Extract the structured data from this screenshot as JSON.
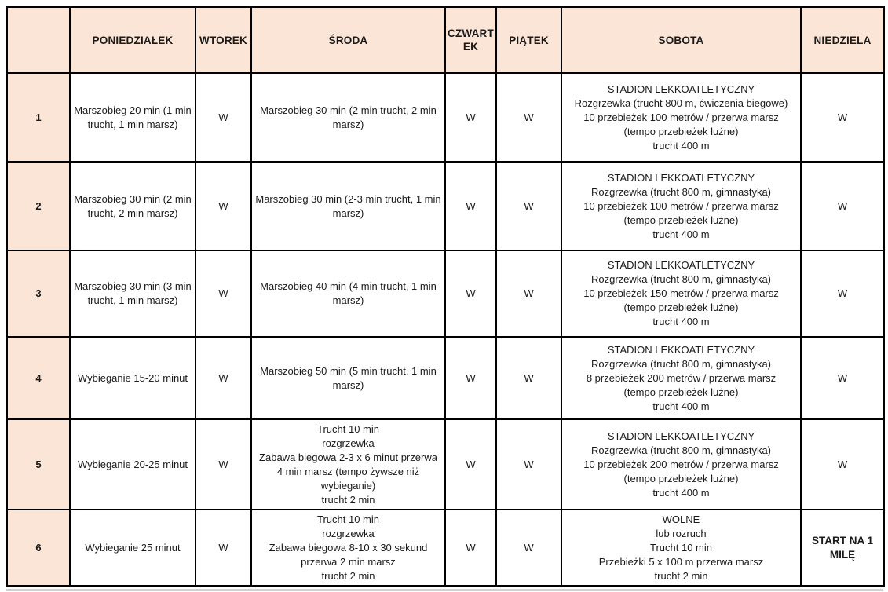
{
  "colors": {
    "header_bg": "#fbe5d6",
    "border": "#000000",
    "text": "#1a1a1a"
  },
  "table": {
    "headers": [
      "",
      "PONIEDZIAŁEK",
      "WTOREK",
      "ŚRODA",
      "CZWART\nEK",
      "PIĄTEK",
      "SOBOTA",
      "NIEDZIELA"
    ],
    "weeks": [
      {
        "num": "1",
        "monday": "Marszobieg 20 min (1 min trucht, 1 min marsz)",
        "tuesday": "W",
        "wednesday": "Marszobieg 30 min (2 min trucht, 2 min marsz)",
        "thursday": "W",
        "friday": "W",
        "saturday": "STADION LEKKOATLETYCZNY\nRozgrzewka (trucht 800 m, ćwiczenia biegowe)\n10 przebieżek 100 metrów / przerwa marsz\n(tempo przebieżek luźne)\ntrucht 400 m",
        "sunday": "W"
      },
      {
        "num": "2",
        "monday": "Marszobieg 30 min (2 min trucht, 2 min marsz)",
        "tuesday": "W",
        "wednesday": "Marszobieg 30 min (2-3 min trucht, 1 min marsz)",
        "thursday": "W",
        "friday": "W",
        "saturday": "STADION LEKKOATLETYCZNY\nRozgrzewka (trucht 800 m, gimnastyka)\n10 przebieżek 100 metrów / przerwa marsz\n(tempo przebieżek luźne)\ntrucht 400 m",
        "sunday": "W"
      },
      {
        "num": "3",
        "monday": "Marszobieg 30 min (3 min trucht, 1 min marsz)",
        "tuesday": "W",
        "wednesday": "Marszobieg 40 min (4 min trucht, 1 min marsz)",
        "thursday": "W",
        "friday": "W",
        "saturday": "STADION LEKKOATLETYCZNY\nRozgrzewka (trucht 800 m, gimnastyka)\n10 przebieżek 150 metrów / przerwa marsz\n(tempo przebieżek luźne)\ntrucht 400 m",
        "sunday": "W"
      },
      {
        "num": "4",
        "monday": "Wybieganie 15-20 minut",
        "tuesday": "W",
        "wednesday": "Marszobieg 50 min (5 min trucht, 1 min marsz)",
        "thursday": "W",
        "friday": "W",
        "saturday": "STADION LEKKOATLETYCZNY\nRozgrzewka (trucht 800 m, gimnastyka)\n8 przebieżek 200 metrów / przerwa marsz\n(tempo przebieżek luźne)\ntrucht 400 m",
        "sunday": "W"
      },
      {
        "num": "5",
        "monday": "Wybieganie 20-25 minut",
        "tuesday": "W",
        "wednesday": "Trucht 10 min\nrozgrzewka\nZabawa biegowa 2-3 x 6 minut przerwa\n4 min marsz (tempo żywsze niż wybieganie)\ntrucht 2 min",
        "thursday": "W",
        "friday": "W",
        "saturday": "STADION LEKKOATLETYCZNY\nRozgrzewka (trucht 800 m, gimnastyka)\n10 przebieżek 200 metrów / przerwa marsz\n(tempo przebieżek luźne)\ntrucht 400 m",
        "sunday": "W"
      },
      {
        "num": "6",
        "monday": "Wybieganie 25 minut",
        "tuesday": "W",
        "wednesday": "Trucht 10 min\nrozgrzewka\nZabawa biegowa 8-10 x 30 sekund\nprzerwa 2 min marsz\ntrucht 2 min",
        "thursday": "W",
        "friday": "W",
        "saturday": "WOLNE\nlub rozruch\nTrucht  10 min\nPrzebieżki 5 x 100 m przerwa marsz\ntrucht 2 min",
        "sunday": "START NA 1 MILĘ"
      }
    ]
  }
}
